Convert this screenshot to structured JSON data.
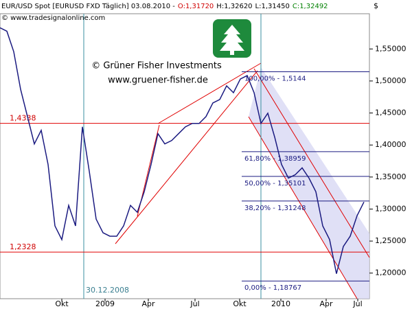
{
  "chart_data": {
    "type": "line",
    "title": "EUR/USD Spot [EURUSD FXD  Täglich] 03.08.2010 -",
    "ohlc": [
      {
        "text": "O:1,31720",
        "color": "#d00000"
      },
      {
        "text": "H:1,32620",
        "color": "#000000"
      },
      {
        "text": "L:1,31450",
        "color": "#000000"
      },
      {
        "text": "C:1,32492",
        "color": "#008000"
      }
    ],
    "source": "© www.tradesignalonline.com",
    "currency": "$",
    "watermark": [
      "© Grüner Fisher Investments",
      "www.gruener-fisher.de"
    ],
    "x": [
      0,
      2,
      4,
      6,
      8,
      10,
      12,
      14,
      16,
      18,
      20,
      22,
      24,
      26,
      28,
      30,
      32,
      34,
      36,
      38,
      40,
      42,
      44,
      46,
      48,
      50,
      52,
      54,
      56,
      58,
      60,
      62,
      64,
      66,
      68,
      70,
      72,
      74,
      76,
      78,
      80,
      82,
      84,
      86,
      88,
      90,
      92,
      94,
      96,
      98,
      100,
      102,
      104,
      106
    ],
    "series": [
      {
        "name": "EUR/USD",
        "color": "#1a1a80",
        "values": [
          1.5831,
          1.5777,
          1.5457,
          1.487,
          1.4444,
          1.4017,
          1.423,
          1.3697,
          1.2737,
          1.2523,
          1.3057,
          1.2737,
          1.4284,
          1.359,
          1.2843,
          1.263,
          1.2576,
          1.2576,
          1.2737,
          1.3057,
          1.295,
          1.327,
          1.3697,
          1.4177,
          1.4017,
          1.407,
          1.4177,
          1.4284,
          1.4337,
          1.4337,
          1.4444,
          1.4657,
          1.471,
          1.4924,
          1.4817,
          1.5031,
          1.5084,
          1.4817,
          1.4337,
          1.4497,
          1.4124,
          1.3697,
          1.3483,
          1.3537,
          1.3643,
          1.3483,
          1.327,
          1.2737,
          1.2523,
          1.199,
          1.2416,
          1.2576,
          1.2896,
          1.311
        ]
      }
    ],
    "xlim": [
      0,
      107.6
    ],
    "ylim": [
      1.16,
      1.605
    ],
    "xticks": [
      {
        "value": 18,
        "label": "Okt"
      },
      {
        "value": 30.6,
        "label": "2009"
      },
      {
        "value": 43.2,
        "label": "Apr"
      },
      {
        "value": 56.8,
        "label": "Jul"
      },
      {
        "value": 69.8,
        "label": "Okt"
      },
      {
        "value": 81.8,
        "label": "2010"
      },
      {
        "value": 95,
        "label": "Apr"
      },
      {
        "value": 104.2,
        "label": "Jul"
      }
    ],
    "yticks": [
      {
        "value": 1.2,
        "label": "1,20000"
      },
      {
        "value": 1.25,
        "label": "1,25000"
      },
      {
        "value": 1.3,
        "label": "1,30000"
      },
      {
        "value": 1.35,
        "label": "1,35000"
      },
      {
        "value": 1.4,
        "label": "1,40000"
      },
      {
        "value": 1.45,
        "label": "1,45000"
      },
      {
        "value": 1.5,
        "label": "1,50000"
      },
      {
        "value": 1.55,
        "label": "1,55000"
      }
    ],
    "levels": [
      {
        "value": 1.4338,
        "label": "1,4338"
      },
      {
        "value": 1.2328,
        "label": "1,2328"
      }
    ],
    "fib": [
      {
        "value": 1.5144,
        "label": "100,00% - 1,5144"
      },
      {
        "value": 1.38959,
        "label": "61,80% - 1,38959"
      },
      {
        "value": 1.35101,
        "label": "50,00% - 1,35101"
      },
      {
        "value": 1.31248,
        "label": "38,20% - 1,31248"
      },
      {
        "value": 1.18767,
        "label": "0,00% - 1,18767"
      }
    ],
    "vlines": [
      {
        "value": 24.4,
        "label": "30.12.2008"
      },
      {
        "value": 76
      }
    ]
  }
}
